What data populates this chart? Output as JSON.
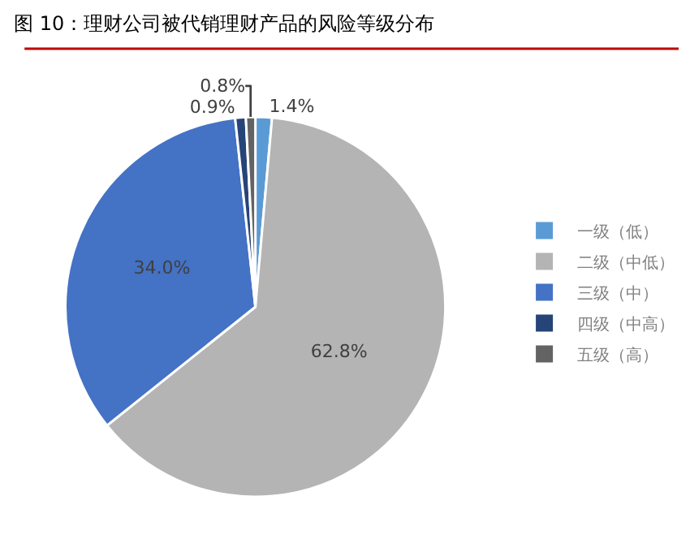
{
  "chart_data": {
    "type": "pie",
    "title": "图 10：理财公司被代销理财产品的风险等级分布",
    "categories": [
      "一级（低）",
      "二级（中低）",
      "三级（中）",
      "四级（中高）",
      "五级（高）"
    ],
    "values": [
      1.4,
      62.8,
      34.0,
      0.9,
      0.8
    ],
    "value_labels": [
      "1.4%",
      "62.8%",
      "34.0%",
      "0.9%",
      "0.8%"
    ],
    "colors": [
      "#5b9bd5",
      "#b4b4b4",
      "#4472c4",
      "#264478",
      "#636363"
    ],
    "legend": "right"
  }
}
